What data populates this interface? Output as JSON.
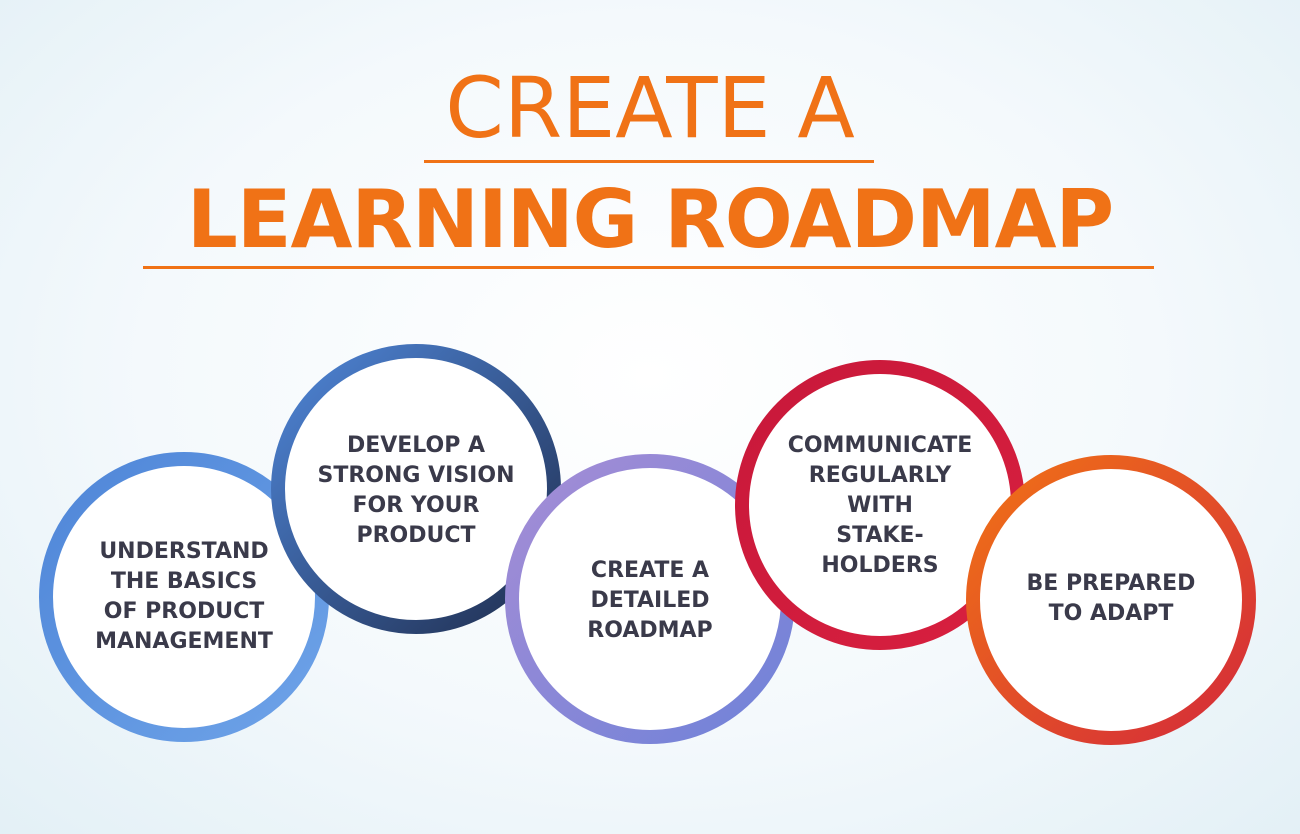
{
  "title": {
    "line1": "CREATE A",
    "line2": "LEARNING ROADMAP"
  },
  "colors": {
    "title": "#f07216",
    "text": "#3a3a4a"
  },
  "steps": [
    {
      "label": "UNDERSTAND\nTHE BASICS\nOF PRODUCT\nMANAGEMENT",
      "ring_colors": [
        "#4f86d8",
        "#6ea3e8"
      ]
    },
    {
      "label": "DEVELOP A\nSTRONG VISION\nFOR YOUR\nPRODUCT",
      "ring_colors": [
        "#4f86d8",
        "#1f2d4e"
      ]
    },
    {
      "label": "CREATE A\nDETAILED\nROADMAP",
      "ring_colors": [
        "#a58dd6",
        "#6f82d8"
      ]
    },
    {
      "label": "COMMUNICATE\nREGULARLY\nWITH\nSTAKE-\nHOLDERS",
      "ring_colors": [
        "#c8183a",
        "#d8203f"
      ]
    },
    {
      "label": "BE PREPARED\nTO ADAPT",
      "ring_colors": [
        "#f07216",
        "#d42a3a"
      ]
    }
  ]
}
